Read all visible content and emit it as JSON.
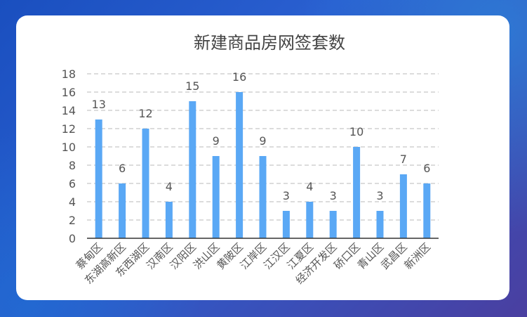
{
  "chart_data": {
    "type": "bar",
    "title": "新建商品房网签套数",
    "categories": [
      "蔡甸区",
      "东湖高新区",
      "东西湖区",
      "汉南区",
      "汉阳区",
      "洪山区",
      "黄陂区",
      "江岸区",
      "江汉区",
      "江夏区",
      "经济开发区",
      "硚口区",
      "青山区",
      "武昌区",
      "新洲区"
    ],
    "values": [
      13,
      6,
      12,
      4,
      15,
      9,
      16,
      9,
      3,
      4,
      3,
      10,
      3,
      7,
      6
    ],
    "ylim": [
      0,
      18
    ],
    "yticks": [
      0,
      2,
      4,
      6,
      8,
      10,
      12,
      14,
      16,
      18
    ],
    "grid": true,
    "bar_color": "#5aa8f5"
  }
}
